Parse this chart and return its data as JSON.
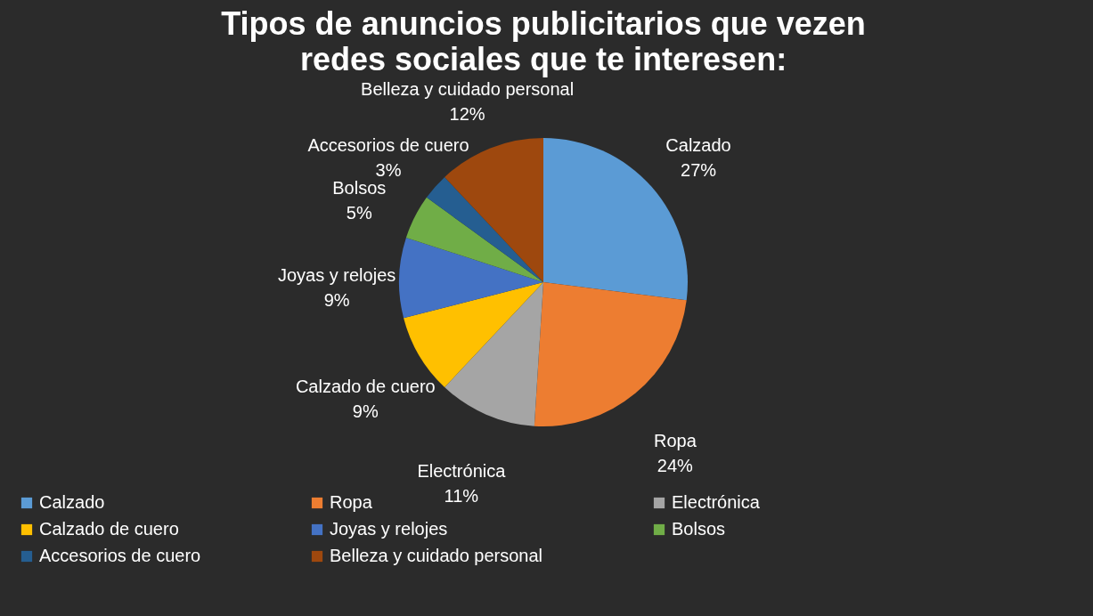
{
  "chart_data": {
    "type": "pie",
    "title": "Tipos de anuncios publicitarios que vezen redes sociales que te interesen:",
    "categories": [
      "Calzado",
      "Ropa",
      "Electrónica",
      "Calzado de cuero",
      "Joyas y relojes",
      "Bolsos",
      "Accesorios de cuero",
      "Belleza y cuidado personal"
    ],
    "values": [
      27,
      24,
      11,
      9,
      9,
      5,
      3,
      12
    ],
    "value_labels": [
      "27%",
      "24%",
      "11%",
      "9%",
      "9%",
      "5%",
      "3%",
      "12%"
    ],
    "colors": [
      "#5b9bd5",
      "#ed7d31",
      "#a5a5a5",
      "#ffc000",
      "#4472c4",
      "#70ad47",
      "#255e91",
      "#9e480e"
    ],
    "legend": "bottom"
  }
}
